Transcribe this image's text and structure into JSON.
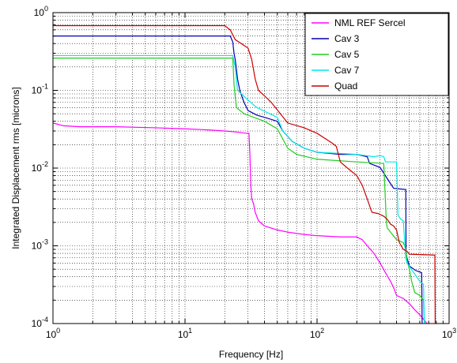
{
  "chart_data": {
    "type": "line",
    "xlabel": "Frequency [Hz]",
    "ylabel": "Integrated Displacement rms [microns]",
    "xscale": "log",
    "yscale": "log",
    "xlim": [
      1,
      1000
    ],
    "ylim": [
      0.0001,
      1
    ],
    "x_ticks": [
      {
        "base": "10",
        "exp": "0",
        "value": 1
      },
      {
        "base": "10",
        "exp": "1",
        "value": 10
      },
      {
        "base": "10",
        "exp": "2",
        "value": 100
      },
      {
        "base": "10",
        "exp": "3",
        "value": 1000
      }
    ],
    "y_ticks": [
      {
        "base": "10",
        "exp": "-4",
        "value": 0.0001
      },
      {
        "base": "10",
        "exp": "-3",
        "value": 0.001
      },
      {
        "base": "10",
        "exp": "-2",
        "value": 0.01
      },
      {
        "base": "10",
        "exp": "-1",
        "value": 0.1
      },
      {
        "base": "10",
        "exp": "0",
        "value": 1
      }
    ],
    "grid": "major-and-minor dotted",
    "legend_position": "top-right",
    "series": [
      {
        "name": "NML REF Sercel",
        "color": "#ff00ff",
        "points": [
          [
            1,
            0.038
          ],
          [
            1.2,
            0.035
          ],
          [
            1.6,
            0.034
          ],
          [
            3,
            0.034
          ],
          [
            6,
            0.033
          ],
          [
            10,
            0.032
          ],
          [
            15,
            0.031
          ],
          [
            20,
            0.03
          ],
          [
            25,
            0.029
          ],
          [
            29,
            0.028
          ],
          [
            30.5,
            0.028
          ],
          [
            31,
            0.015
          ],
          [
            31.5,
            0.006
          ],
          [
            32,
            0.004
          ],
          [
            33,
            0.0035
          ],
          [
            34,
            0.0027
          ],
          [
            36,
            0.0021
          ],
          [
            40,
            0.0018
          ],
          [
            50,
            0.0016
          ],
          [
            60,
            0.0015
          ],
          [
            80,
            0.0014
          ],
          [
            100,
            0.00135
          ],
          [
            150,
            0.0013
          ],
          [
            200,
            0.0013
          ],
          [
            220,
            0.0012
          ],
          [
            240,
            0.001
          ],
          [
            270,
            0.0008
          ],
          [
            300,
            0.0006
          ],
          [
            330,
            0.00045
          ],
          [
            360,
            0.00035
          ],
          [
            380,
            0.00029
          ],
          [
            400,
            0.00023
          ],
          [
            450,
            0.00021
          ],
          [
            500,
            0.00018
          ],
          [
            550,
            0.00015
          ],
          [
            600,
            0.00013
          ],
          [
            650,
            0.00011
          ],
          [
            680,
            0.0001
          ]
        ]
      },
      {
        "name": "Cav 3",
        "color": "#0000b0",
        "points": [
          [
            1,
            0.5
          ],
          [
            22,
            0.5
          ],
          [
            23,
            0.42
          ],
          [
            23.5,
            0.3
          ],
          [
            24,
            0.25
          ],
          [
            25,
            0.14
          ],
          [
            26,
            0.1
          ],
          [
            27,
            0.083
          ],
          [
            28,
            0.07
          ],
          [
            30,
            0.055
          ],
          [
            35,
            0.048
          ],
          [
            40,
            0.045
          ],
          [
            50,
            0.04
          ],
          [
            55,
            0.03
          ],
          [
            65,
            0.022
          ],
          [
            80,
            0.018
          ],
          [
            100,
            0.016
          ],
          [
            150,
            0.015
          ],
          [
            200,
            0.015
          ],
          [
            240,
            0.014
          ],
          [
            250,
            0.0115
          ],
          [
            300,
            0.0102
          ],
          [
            350,
            0.0068
          ],
          [
            380,
            0.0055
          ],
          [
            470,
            0.0053
          ],
          [
            472,
            0.0008
          ],
          [
            480,
            0.0007
          ],
          [
            500,
            0.00055
          ],
          [
            560,
            0.00048
          ],
          [
            600,
            0.00046
          ],
          [
            620,
            0.00045
          ],
          [
            625,
            0.0001
          ]
        ]
      },
      {
        "name": "Cav 5",
        "color": "#22cc22",
        "points": [
          [
            1,
            0.26
          ],
          [
            23,
            0.26
          ],
          [
            23.5,
            0.12
          ],
          [
            24.5,
            0.06
          ],
          [
            28,
            0.05
          ],
          [
            40,
            0.04
          ],
          [
            50,
            0.032
          ],
          [
            60,
            0.018
          ],
          [
            70,
            0.015
          ],
          [
            100,
            0.013
          ],
          [
            200,
            0.012
          ],
          [
            320,
            0.0115
          ],
          [
            335,
            0.002
          ],
          [
            340,
            0.0017
          ],
          [
            360,
            0.0015
          ],
          [
            400,
            0.0012
          ],
          [
            450,
            0.0011
          ],
          [
            470,
            0.0009
          ],
          [
            480,
            0.00065
          ],
          [
            500,
            0.0005
          ],
          [
            520,
            0.00035
          ],
          [
            550,
            0.00025
          ],
          [
            600,
            0.00023
          ],
          [
            640,
            0.0002
          ],
          [
            650,
            0.0001
          ]
        ]
      },
      {
        "name": "Cav 7",
        "color": "#00e8e8",
        "points": [
          [
            1,
            0.28
          ],
          [
            23,
            0.28
          ],
          [
            24,
            0.2
          ],
          [
            25,
            0.1
          ],
          [
            30,
            0.075
          ],
          [
            35,
            0.06
          ],
          [
            40,
            0.054
          ],
          [
            50,
            0.045
          ],
          [
            55,
            0.03
          ],
          [
            65,
            0.022
          ],
          [
            80,
            0.018
          ],
          [
            100,
            0.016
          ],
          [
            200,
            0.015
          ],
          [
            270,
            0.014
          ],
          [
            300,
            0.0145
          ],
          [
            320,
            0.014
          ],
          [
            330,
            0.012
          ],
          [
            400,
            0.012
          ],
          [
            410,
            0.0025
          ],
          [
            430,
            0.0022
          ],
          [
            450,
            0.0021
          ],
          [
            470,
            0.0007
          ],
          [
            480,
            0.0006
          ],
          [
            600,
            0.00035
          ],
          [
            640,
            0.00032
          ],
          [
            650,
            0.0001
          ]
        ]
      },
      {
        "name": "Quad",
        "color": "#cc0000",
        "points": [
          [
            1,
            0.68
          ],
          [
            20,
            0.68
          ],
          [
            22,
            0.6
          ],
          [
            24,
            0.45
          ],
          [
            30,
            0.35
          ],
          [
            32,
            0.25
          ],
          [
            34,
            0.14
          ],
          [
            36,
            0.1
          ],
          [
            40,
            0.085
          ],
          [
            45,
            0.07
          ],
          [
            50,
            0.056
          ],
          [
            60,
            0.038
          ],
          [
            80,
            0.033
          ],
          [
            100,
            0.028
          ],
          [
            130,
            0.021
          ],
          [
            140,
            0.019
          ],
          [
            150,
            0.012
          ],
          [
            170,
            0.01
          ],
          [
            200,
            0.008
          ],
          [
            220,
            0.006
          ],
          [
            240,
            0.004
          ],
          [
            260,
            0.0027
          ],
          [
            290,
            0.0026
          ],
          [
            320,
            0.0024
          ],
          [
            340,
            0.0022
          ],
          [
            360,
            0.0019
          ],
          [
            380,
            0.0018
          ],
          [
            400,
            0.0016
          ],
          [
            420,
            0.0011
          ],
          [
            450,
            0.0009
          ],
          [
            480,
            0.00085
          ],
          [
            500,
            0.00078
          ],
          [
            780,
            0.00076
          ],
          [
            785,
            0.0001
          ]
        ]
      }
    ]
  }
}
